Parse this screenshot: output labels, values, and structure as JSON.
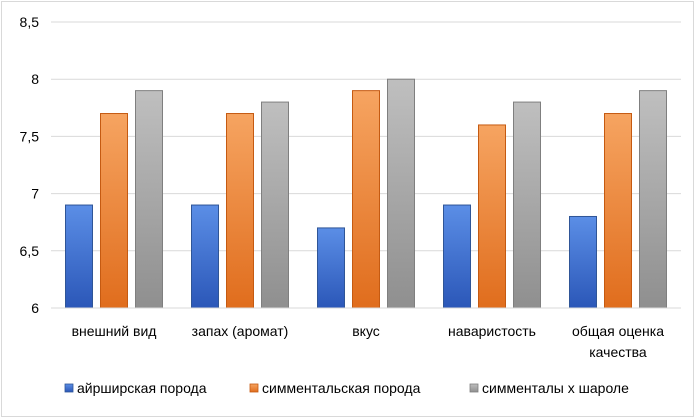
{
  "chart_data": {
    "type": "bar",
    "title": "",
    "xlabel": "",
    "ylabel": "",
    "categories": [
      "внешний вид",
      "запах (аромат)",
      "вкус",
      "наваристость",
      "общая оценка качества"
    ],
    "category_lines": [
      [
        "внешний вид"
      ],
      [
        "запах (аромат)"
      ],
      [
        "вкус"
      ],
      [
        "наваристость"
      ],
      [
        "общая оценка",
        "качества"
      ]
    ],
    "series": [
      {
        "name": "айрширская порода",
        "values": [
          6.9,
          6.9,
          6.7,
          6.9,
          6.8
        ],
        "color_top": "#5b8ee6",
        "color_bottom": "#2b57b8",
        "stroke": "#2f5597"
      },
      {
        "name": "симментальская порода",
        "values": [
          7.7,
          7.7,
          7.9,
          7.6,
          7.7
        ],
        "color_top": "#f6a461",
        "color_bottom": "#e06d1d",
        "stroke": "#c55a11"
      },
      {
        "name": "симменталы х шароле",
        "values": [
          7.9,
          7.8,
          8.0,
          7.8,
          7.9
        ],
        "color_top": "#bfbfbf",
        "color_bottom": "#8f8f8f",
        "stroke": "#7f7f7f"
      }
    ],
    "yticks": [
      {
        "value": 6,
        "label": "6"
      },
      {
        "value": 6.5,
        "label": "6,5"
      },
      {
        "value": 7,
        "label": "7"
      },
      {
        "value": 7.5,
        "label": "7,5"
      },
      {
        "value": 8,
        "label": "8"
      },
      {
        "value": 8.5,
        "label": "8,5"
      }
    ],
    "ylim": [
      6,
      8.5
    ],
    "grid": true,
    "legend_position": "bottom"
  }
}
